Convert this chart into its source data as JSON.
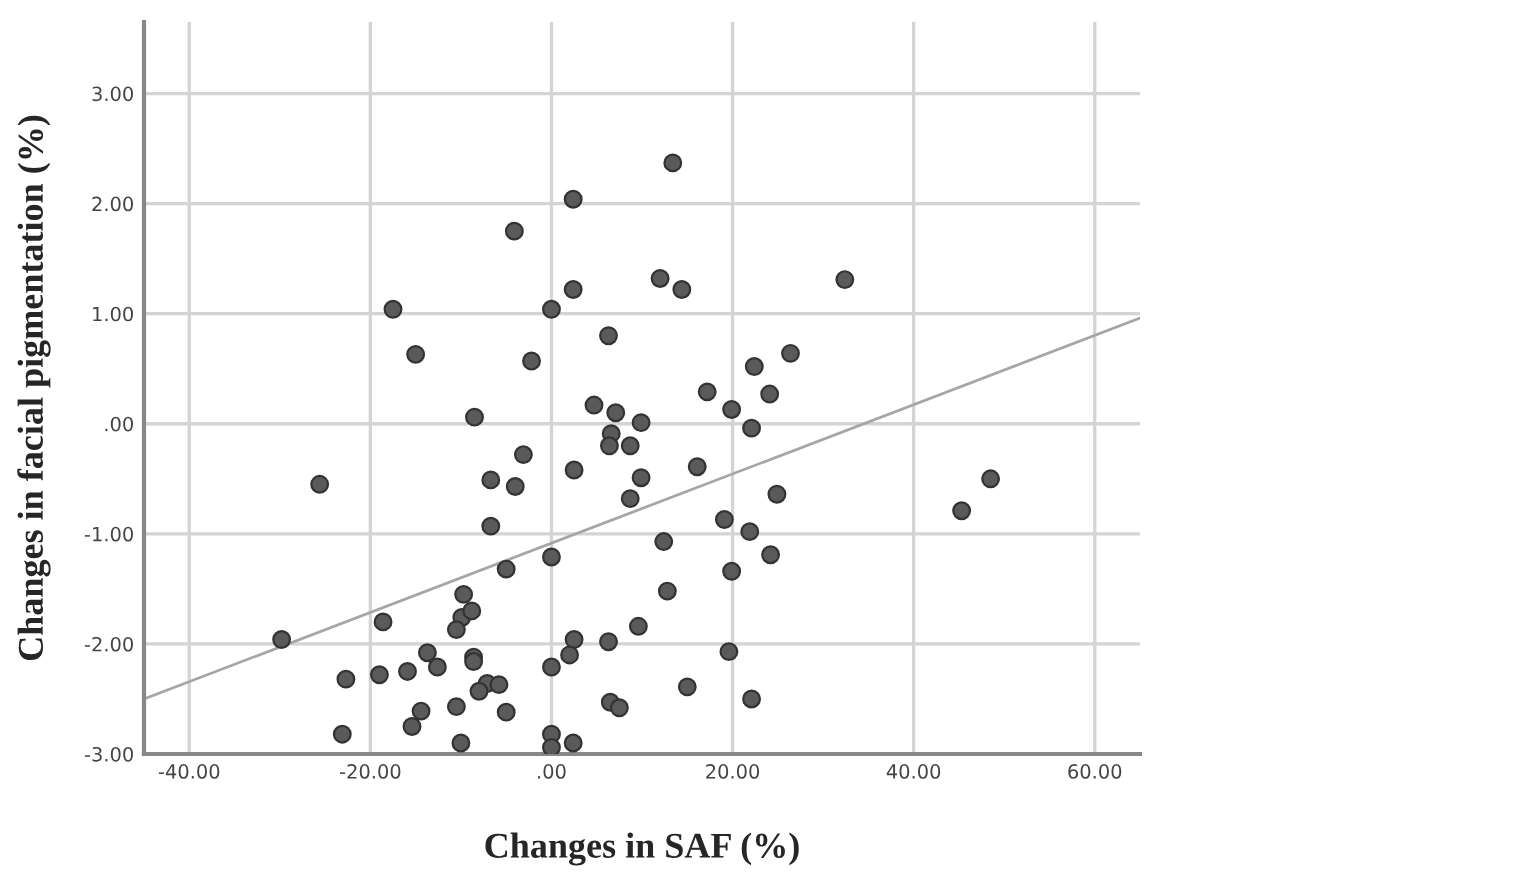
{
  "chart_data": {
    "type": "scatter",
    "xlabel": "Changes in SAF (%)",
    "ylabel": "Changes in facial pigmentation (%)",
    "xlim": [
      -45,
      65
    ],
    "ylim": [
      -3,
      3.65
    ],
    "xticks": [
      {
        "value": -40,
        "label": "-40.00"
      },
      {
        "value": -20,
        "label": "-20.00"
      },
      {
        "value": 0,
        "label": ".00"
      },
      {
        "value": 20,
        "label": "20.00"
      },
      {
        "value": 40,
        "label": "40.00"
      },
      {
        "value": 60,
        "label": "60.00"
      }
    ],
    "yticks": [
      {
        "value": -3,
        "label": "-3.00"
      },
      {
        "value": -2,
        "label": "-2.00"
      },
      {
        "value": -1,
        "label": "-1.00"
      },
      {
        "value": 0,
        "label": ".00"
      },
      {
        "value": 1,
        "label": "1.00"
      },
      {
        "value": 2,
        "label": "2.00"
      },
      {
        "value": 3,
        "label": "3.00"
      }
    ],
    "grid": true,
    "legend": false,
    "series": [
      {
        "marker": "circle",
        "color": "#5a5a5a",
        "x": [
          13.4,
          2.4,
          -4.1,
          12.0,
          14.4,
          2.4,
          -17.5,
          0,
          6.3,
          -15.0,
          -2.2,
          22.4,
          26.4,
          17.2,
          24.1,
          4.7,
          7.1,
          19.9,
          -8.5,
          9.9,
          22.1,
          6.6,
          6.4,
          8.7,
          -3.1,
          16.1,
          2.5,
          -6.7,
          9.9,
          -4.0,
          -25.6,
          24.9,
          8.7,
          -6.7,
          19.1,
          21.9,
          12.4,
          0,
          24.2,
          -5.0,
          19.9,
          12.8,
          -9.7,
          -9.9,
          -8.8,
          -10.5,
          -18.6,
          9.6,
          -29.8,
          2.5,
          6.3,
          -8.6,
          -8.6,
          -13.7,
          19.6,
          -12.6,
          2.0,
          0,
          -22.7,
          -19.0,
          -15.9,
          -7.1,
          -5.8,
          -8.0,
          15.0,
          -14.4,
          -15.4,
          -10.5,
          -5.0,
          6.5,
          7.5,
          22.1,
          -23.1,
          -10.0,
          0,
          0,
          2.4,
          32.4,
          45.3,
          48.5
        ],
        "values": [
          2.37,
          2.04,
          1.75,
          1.32,
          1.22,
          1.22,
          1.04,
          1.04,
          0.8,
          0.63,
          0.57,
          0.52,
          0.64,
          0.29,
          0.27,
          0.17,
          0.1,
          0.13,
          0.06,
          0.01,
          -0.04,
          -0.09,
          -0.2,
          -0.2,
          -0.28,
          -0.39,
          -0.42,
          -0.51,
          -0.49,
          -0.57,
          -0.55,
          -0.64,
          -0.68,
          -0.93,
          -0.87,
          -0.98,
          -1.07,
          -1.21,
          -1.19,
          -1.32,
          -1.34,
          -1.52,
          -1.55,
          -1.76,
          -1.7,
          -1.87,
          -1.8,
          -1.84,
          -1.96,
          -1.96,
          -1.98,
          -2.12,
          -2.16,
          -2.08,
          -2.07,
          -2.21,
          -2.1,
          -2.21,
          -2.32,
          -2.28,
          -2.25,
          -2.36,
          -2.37,
          -2.43,
          -2.39,
          -2.61,
          -2.75,
          -2.57,
          -2.62,
          -2.53,
          -2.58,
          -2.5,
          -2.82,
          -2.9,
          -2.82,
          -2.94,
          -2.9,
          1.31,
          -0.79,
          -0.5
        ]
      },
      {
        "type": "line",
        "marker": "none",
        "color": "#a6a6a6",
        "x": [
          -45,
          65
        ],
        "values": [
          -2.5,
          0.96
        ]
      }
    ]
  }
}
